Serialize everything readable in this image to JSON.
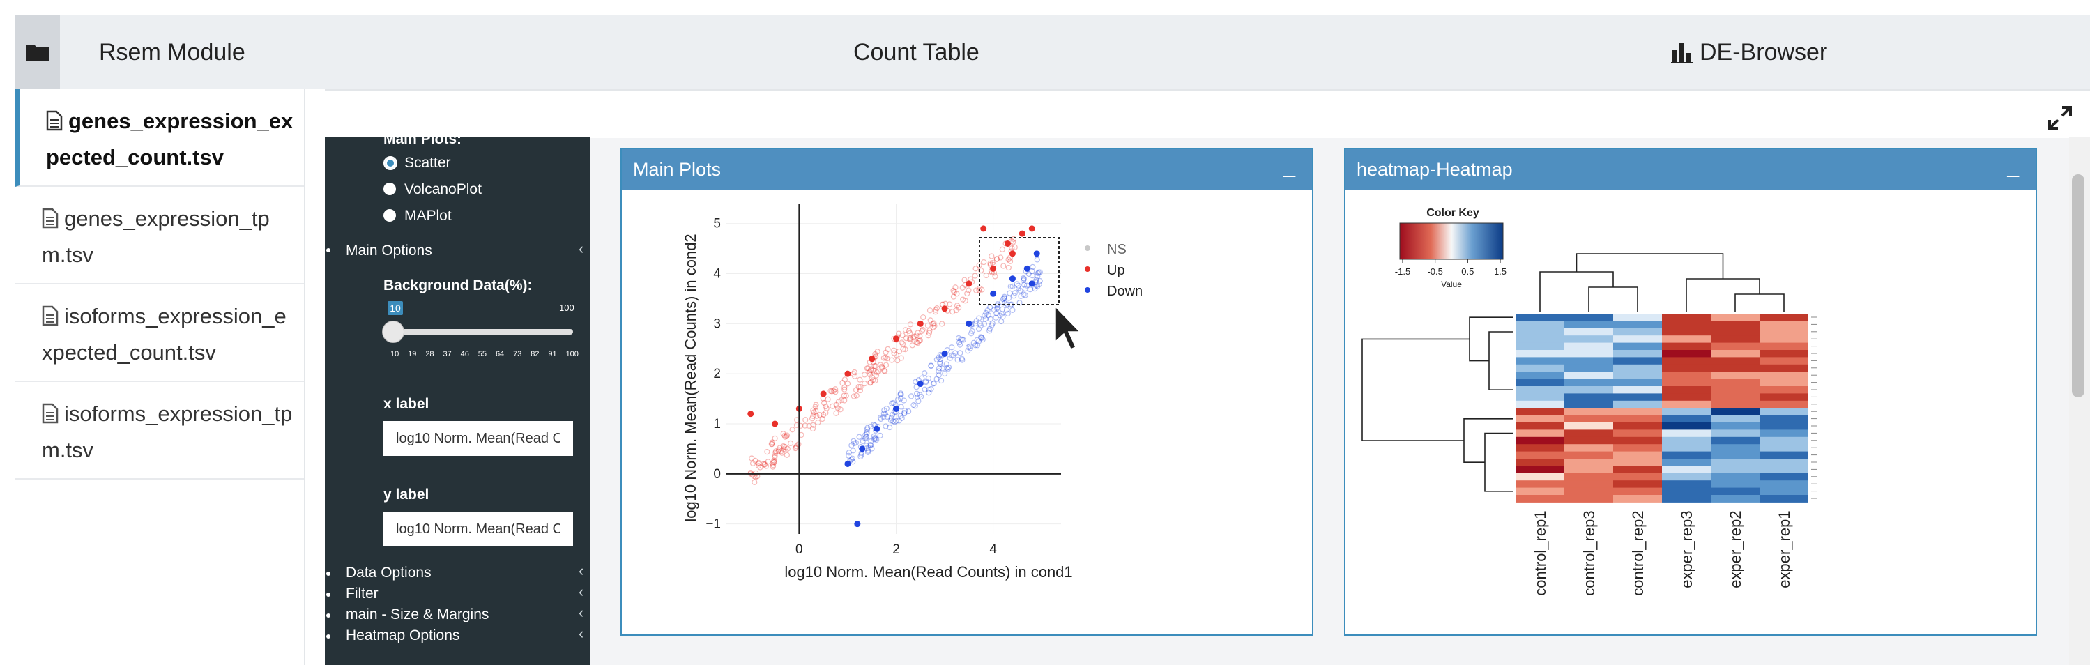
{
  "topbar": {
    "tabs": [
      "Rsem Module",
      "Count Table",
      "DE-Browser"
    ]
  },
  "files": [
    "genes_expression_expected_count.tsv",
    "genes_expression_tpm.tsv",
    "isoforms_expression_expected_count.tsv",
    "isoforms_expression_tpm.tsv"
  ],
  "sidebar": {
    "main_plots_label": "Main Plots:",
    "plot_options": [
      "Scatter",
      "VolcanoPlot",
      "MAPlot"
    ],
    "selected_plot": "Scatter",
    "main_options": "Main Options",
    "background_label": "Background Data(%):",
    "slider": {
      "value": "10",
      "min": "10",
      "max": "100",
      "ticks": [
        "10",
        "19",
        "28",
        "37",
        "46",
        "55",
        "64",
        "73",
        "82",
        "91",
        "100"
      ]
    },
    "xlabel_title": "x label",
    "xlabel_value": "log10 Norm. Mean(Read Counts) in cond1",
    "ylabel_title": "y label",
    "ylabel_value": "log10 Norm. Mean(Read Counts) in cond2",
    "sections": [
      "Data Options",
      "Filter",
      "main - Size & Margins",
      "Heatmap Options"
    ]
  },
  "main_plot": {
    "title": "Main Plots",
    "min_label": "_",
    "legend": [
      "NS",
      "Up",
      "Down"
    ],
    "colors": {
      "ns": "#c8c8c8",
      "up": "#e8302a",
      "down": "#2044e0"
    }
  },
  "heatmap": {
    "title": "heatmap-Heatmap",
    "min_label": "_",
    "color_key_title": "Color Key",
    "color_key_ticks": [
      "-1.5",
      "-0.5",
      "0.5",
      "1.5"
    ],
    "color_key_label": "Value",
    "columns": [
      "control_rep1",
      "control_rep3",
      "control_rep2",
      "exper_rep3",
      "exper_rep2",
      "exper_rep1"
    ]
  },
  "chart_data": {
    "type": "scatter",
    "xlabel": "log10 Norm. Mean(Read Counts) in cond1",
    "ylabel": "log10 Norm. Mean(Read Counts) in cond2",
    "xlim": [
      -1.5,
      5.4
    ],
    "ylim": [
      -1.2,
      5.4
    ],
    "xticks": [
      0,
      2,
      4
    ],
    "yticks": [
      -1,
      0,
      1,
      2,
      3,
      4,
      5
    ],
    "series": [
      {
        "name": "Up",
        "points": [
          [
            -1.0,
            1.2
          ],
          [
            -0.5,
            1.0
          ],
          [
            0.0,
            1.3
          ],
          [
            0.5,
            1.6
          ],
          [
            1.0,
            2.0
          ],
          [
            1.5,
            2.3
          ],
          [
            2.0,
            2.7
          ],
          [
            2.5,
            3.0
          ],
          [
            3.0,
            3.3
          ],
          [
            3.5,
            3.8
          ],
          [
            4.0,
            4.1
          ],
          [
            4.3,
            4.6
          ],
          [
            4.6,
            4.8
          ],
          [
            4.8,
            4.9
          ],
          [
            4.4,
            4.4
          ],
          [
            3.8,
            4.9
          ]
        ]
      },
      {
        "name": "Down",
        "points": [
          [
            1.0,
            0.2
          ],
          [
            1.3,
            0.5
          ],
          [
            1.6,
            0.9
          ],
          [
            2.0,
            1.3
          ],
          [
            2.5,
            1.8
          ],
          [
            3.0,
            2.4
          ],
          [
            3.5,
            3.0
          ],
          [
            4.0,
            3.6
          ],
          [
            4.4,
            3.9
          ],
          [
            4.7,
            4.1
          ],
          [
            4.9,
            4.4
          ],
          [
            4.8,
            3.8
          ],
          [
            1.2,
            -1.0
          ]
        ]
      }
    ]
  }
}
